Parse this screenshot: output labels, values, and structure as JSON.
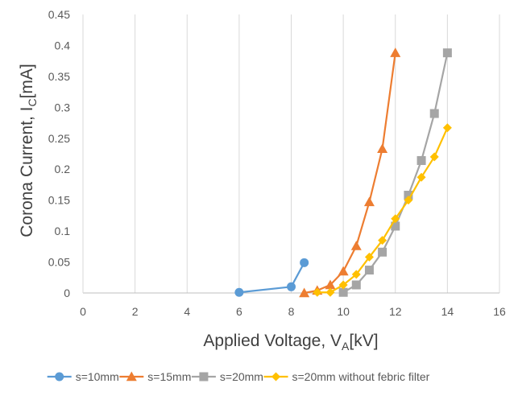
{
  "chart_data": {
    "type": "line",
    "ylabel_main": "Corona Current, I",
    "ylabel_sub": "C",
    "ylabel_unit": "[mA]",
    "xlabel_main": "Applied Voltage, V",
    "xlabel_sub": "A",
    "xlabel_unit": "[kV]",
    "xlim": [
      0,
      16
    ],
    "ylim": [
      0,
      0.45
    ],
    "x_ticks": [
      "0",
      "2",
      "4",
      "6",
      "8",
      "10",
      "12",
      "14",
      "16"
    ],
    "y_ticks": [
      "0",
      "0.05",
      "0.1",
      "0.15",
      "0.2",
      "0.25",
      "0.3",
      "0.35",
      "0.4",
      "0.45"
    ],
    "grid": "vertical",
    "legend_position": "bottom",
    "series": [
      {
        "name": "s=10mm",
        "color": "#5B9BD5",
        "marker": "circle",
        "x": [
          6,
          8,
          8.5
        ],
        "y": [
          0.001,
          0.01,
          0.049
        ]
      },
      {
        "name": "s=15mm",
        "color": "#ED7D31",
        "marker": "triangle",
        "x": [
          8.5,
          9,
          9.5,
          10,
          10.5,
          11,
          11.5,
          12
        ],
        "y": [
          0.0,
          0.004,
          0.013,
          0.035,
          0.076,
          0.147,
          0.233,
          0.388
        ]
      },
      {
        "name": "s=20mm",
        "color": "#A5A5A5",
        "marker": "square",
        "x": [
          10,
          10.5,
          11,
          11.5,
          12,
          12.5,
          13,
          13.5,
          14
        ],
        "y": [
          0.001,
          0.013,
          0.037,
          0.066,
          0.108,
          0.158,
          0.214,
          0.29,
          0.388
        ]
      },
      {
        "name": "s=20mm without febric filter",
        "color": "#FFC000",
        "marker": "diamond",
        "x": [
          9,
          9.5,
          10,
          10.5,
          11,
          11.5,
          12,
          12.5,
          13,
          13.5,
          14
        ],
        "y": [
          0.001,
          0.001,
          0.013,
          0.03,
          0.058,
          0.085,
          0.12,
          0.15,
          0.187,
          0.22,
          0.267
        ]
      }
    ]
  }
}
